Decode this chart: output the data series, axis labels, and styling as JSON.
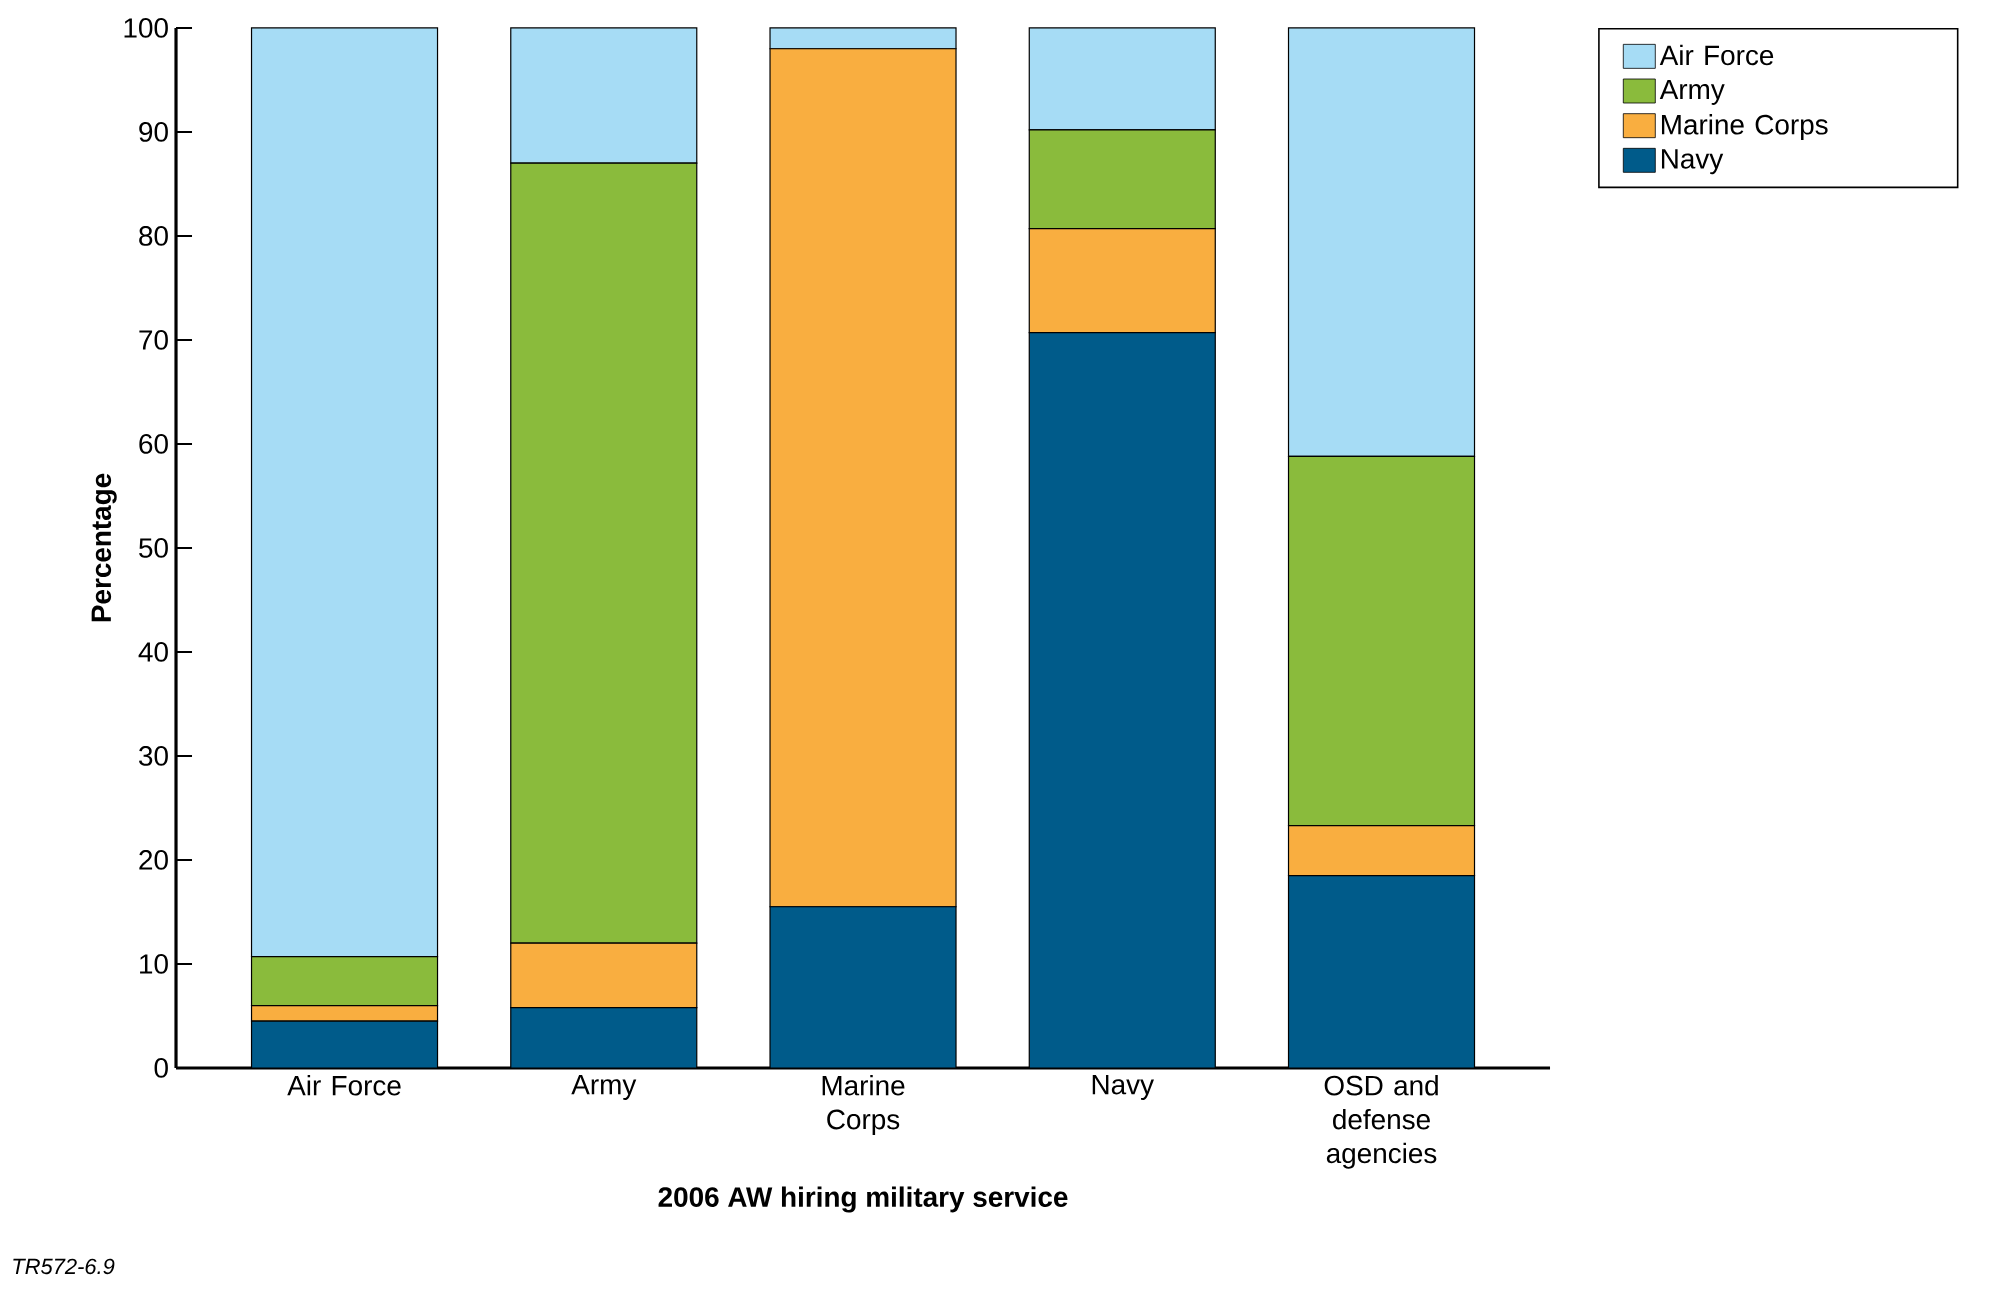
{
  "chart_data": {
    "type": "bar",
    "stacked": true,
    "xlabel": "2006 AW hiring military service",
    "ylabel": "Percentage",
    "categories": [
      "Air Force",
      "Army",
      "Marine Corps",
      "Navy",
      "OSD and defense agencies"
    ],
    "series": [
      {
        "name": "Navy",
        "color": "#005b8a",
        "values": [
          4.5,
          5.8,
          15.5,
          70.7,
          18.5
        ]
      },
      {
        "name": "Marine Corps",
        "color": "#f9ae40",
        "values": [
          1.5,
          6.2,
          82.5,
          10,
          4.8
        ]
      },
      {
        "name": "Army",
        "color": "#8abb3c",
        "values": [
          4.7,
          75,
          0,
          9.5,
          35.5
        ]
      },
      {
        "name": "Air Force",
        "color": "#a6dcf5",
        "values": [
          89.3,
          13,
          2,
          9.8,
          41.2
        ]
      }
    ],
    "ylim": [
      0,
      100
    ],
    "yticks": [
      0,
      10,
      20,
      30,
      40,
      50,
      60,
      70,
      80,
      90,
      100
    ],
    "legend": "top right",
    "annotations": [
      "*TR572-6.9*"
    ]
  }
}
